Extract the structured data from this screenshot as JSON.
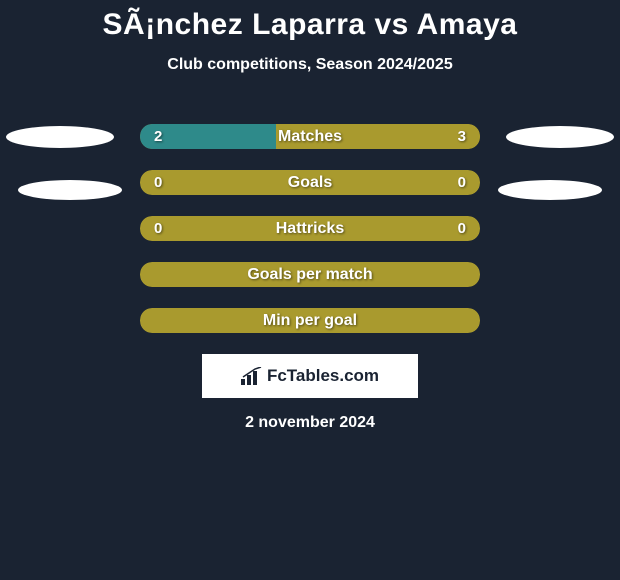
{
  "title": "SÃ¡nchez Laparra vs Amaya",
  "subtitle": "Club competitions, Season 2024/2025",
  "colors": {
    "background": "#1a2332",
    "bar_olive": "#a99a2e",
    "bar_teal": "#2e8a8a",
    "text": "#ffffff",
    "oval": "#ffffff",
    "logo_bg": "#ffffff"
  },
  "stats": [
    {
      "label": "Matches",
      "left_value": "2",
      "right_value": "3",
      "left_pct": 40,
      "right_pct": 60,
      "left_color": "#2e8a8a",
      "right_color": "#a99a2e",
      "show_values": true
    },
    {
      "label": "Goals",
      "left_value": "0",
      "right_value": "0",
      "left_pct": 0,
      "right_pct": 0,
      "left_color": "#a99a2e",
      "right_color": "#a99a2e",
      "show_values": true
    },
    {
      "label": "Hattricks",
      "left_value": "0",
      "right_value": "0",
      "left_pct": 0,
      "right_pct": 0,
      "left_color": "#a99a2e",
      "right_color": "#a99a2e",
      "show_values": true
    },
    {
      "label": "Goals per match",
      "left_value": "",
      "right_value": "",
      "left_pct": 0,
      "right_pct": 0,
      "left_color": "#a99a2e",
      "right_color": "#a99a2e",
      "show_values": false
    },
    {
      "label": "Min per goal",
      "left_value": "",
      "right_value": "",
      "left_pct": 0,
      "right_pct": 0,
      "left_color": "#a99a2e",
      "right_color": "#a99a2e",
      "show_values": false
    }
  ],
  "logo": {
    "text": "FcTables.com"
  },
  "date": "2 november 2024"
}
